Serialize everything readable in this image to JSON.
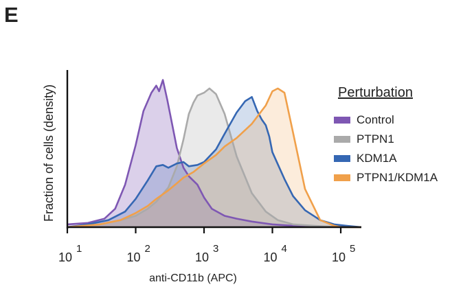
{
  "panel_label": "E",
  "chart_data": {
    "type": "area",
    "title": "",
    "xlabel": "anti-CD11b (APC)",
    "ylabel": "Fraction of cells (density)",
    "x_scale": "log",
    "xlim": [
      10,
      200000
    ],
    "ylim": [
      0,
      1.12
    ],
    "x_ticks": [
      {
        "value": 10,
        "base": "10",
        "exp": "1"
      },
      {
        "value": 100,
        "base": "10",
        "exp": "2"
      },
      {
        "value": 1000,
        "base": "10",
        "exp": "3"
      },
      {
        "value": 10000,
        "base": "10",
        "exp": "4"
      },
      {
        "value": 100000,
        "base": "10",
        "exp": "5"
      }
    ],
    "legend": {
      "title": "Perturbation",
      "position": "right"
    },
    "series": [
      {
        "name": "Control",
        "color": "#7e57b3",
        "fill": "rgba(126,87,179,0.28)",
        "x": [
          10,
          20,
          35,
          50,
          70,
          100,
          130,
          170,
          200,
          220,
          250,
          290,
          350,
          400,
          500,
          600,
          800,
          1000,
          1300,
          2000,
          3000,
          5000,
          10000,
          20000,
          50000,
          200000
        ],
        "y": [
          0.02,
          0.03,
          0.06,
          0.13,
          0.3,
          0.58,
          0.82,
          0.95,
          1.0,
          0.96,
          1.04,
          0.9,
          0.7,
          0.56,
          0.42,
          0.36,
          0.3,
          0.21,
          0.13,
          0.08,
          0.06,
          0.04,
          0.02,
          0.01,
          0.005,
          0.0
        ]
      },
      {
        "name": "PTPN1",
        "color": "#aaaaaa",
        "fill": "rgba(175,175,175,0.26)",
        "x": [
          10,
          30,
          60,
          100,
          150,
          200,
          300,
          400,
          500,
          600,
          700,
          800,
          1000,
          1200,
          1500,
          2000,
          3000,
          5000,
          8000,
          12000,
          20000,
          40000,
          100000,
          200000
        ],
        "y": [
          0.0,
          0.02,
          0.05,
          0.08,
          0.13,
          0.18,
          0.28,
          0.43,
          0.62,
          0.8,
          0.88,
          0.93,
          0.95,
          0.98,
          0.94,
          0.8,
          0.5,
          0.24,
          0.11,
          0.05,
          0.02,
          0.01,
          0.0,
          0.0
        ]
      },
      {
        "name": "KDM1A",
        "color": "#3567b3",
        "fill": "rgba(53,103,179,0.22)",
        "x": [
          10,
          20,
          40,
          70,
          100,
          150,
          200,
          250,
          300,
          400,
          500,
          600,
          800,
          1000,
          1500,
          2000,
          3000,
          4000,
          5000,
          6000,
          7000,
          8000,
          9000,
          10000,
          15000,
          20000,
          30000,
          50000,
          80000,
          120000,
          200000
        ],
        "y": [
          0.0,
          0.02,
          0.05,
          0.11,
          0.2,
          0.33,
          0.43,
          0.44,
          0.42,
          0.45,
          0.46,
          0.43,
          0.44,
          0.46,
          0.55,
          0.66,
          0.81,
          0.89,
          0.92,
          0.82,
          0.76,
          0.72,
          0.64,
          0.53,
          0.34,
          0.22,
          0.12,
          0.05,
          0.02,
          0.01,
          0.0
        ]
      },
      {
        "name": "PTPN1/KDM1A",
        "color": "#f0a04a",
        "fill": "rgba(240,160,74,0.20)",
        "x": [
          10,
          30,
          60,
          100,
          150,
          200,
          300,
          400,
          500,
          700,
          1000,
          1500,
          2000,
          3000,
          5000,
          8000,
          10000,
          12000,
          15000,
          20000,
          30000,
          50000,
          80000,
          100000,
          200000
        ],
        "y": [
          0.0,
          0.02,
          0.05,
          0.1,
          0.15,
          0.2,
          0.26,
          0.31,
          0.35,
          0.39,
          0.45,
          0.51,
          0.57,
          0.63,
          0.73,
          0.86,
          0.96,
          0.98,
          0.95,
          0.67,
          0.27,
          0.05,
          0.01,
          0.0,
          0.0
        ]
      }
    ]
  }
}
